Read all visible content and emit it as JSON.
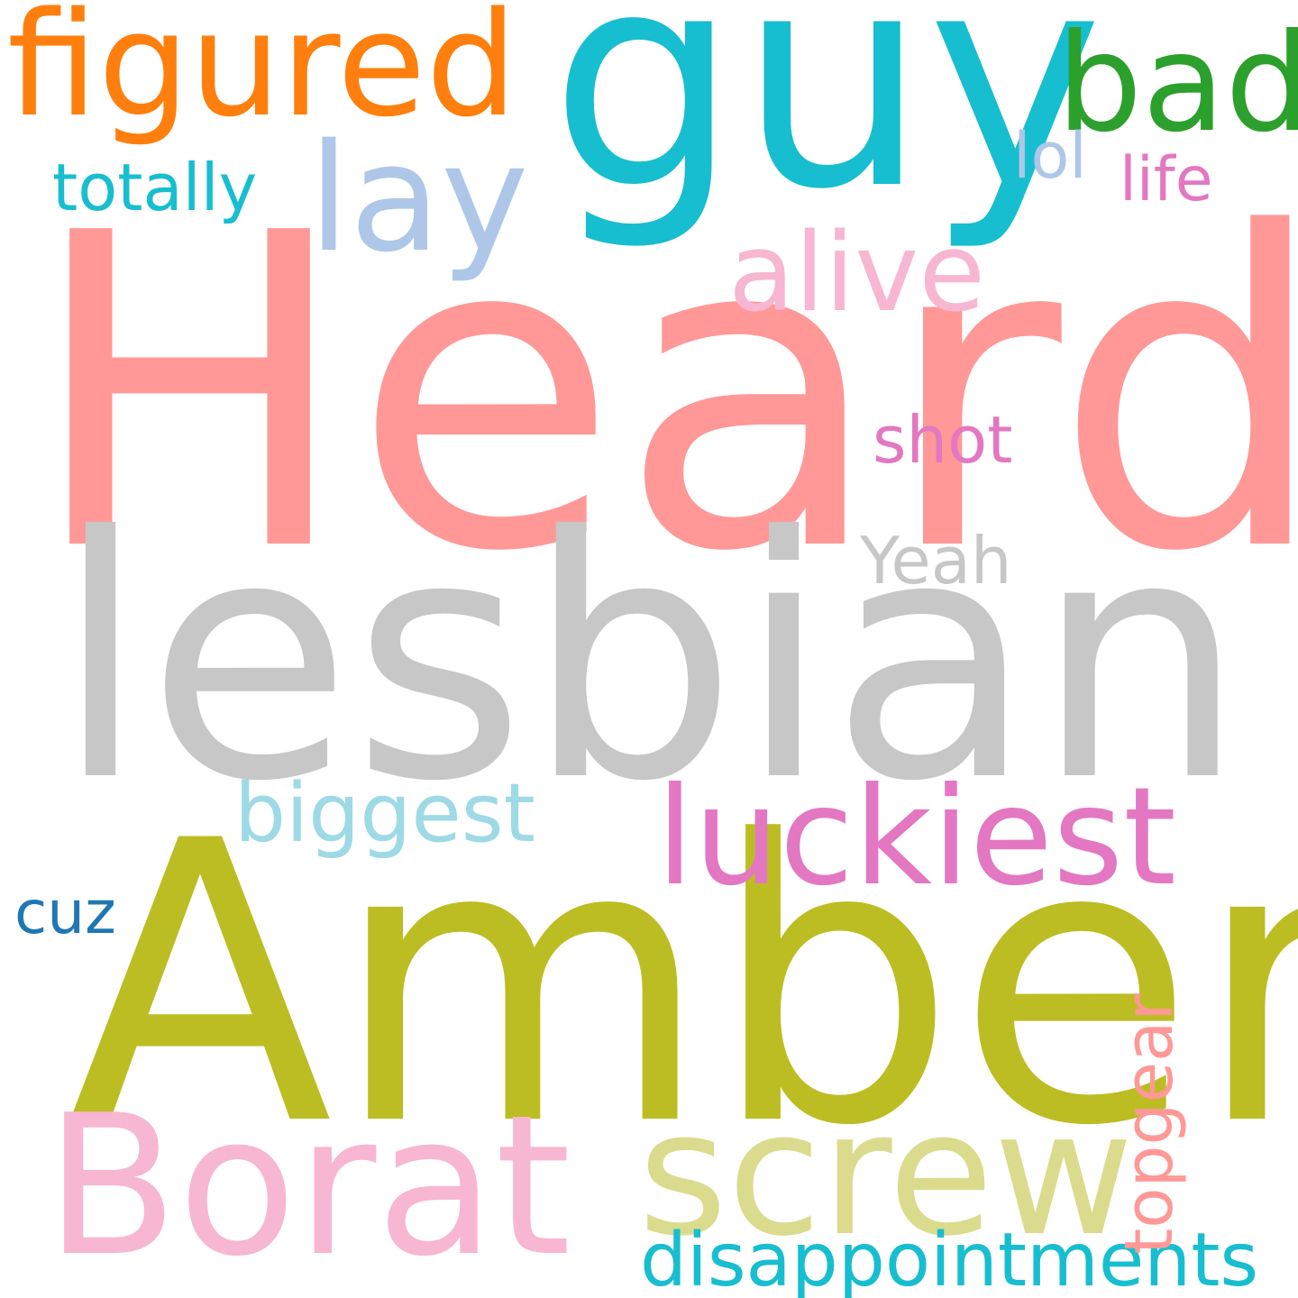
{
  "cloud": {
    "background": "#ffffff",
    "words": {
      "heard": {
        "text": "Heard",
        "color": "#ff9896"
      },
      "lesbian": {
        "text": "lesbian",
        "color": "#c7c7c7"
      },
      "amber": {
        "text": "Amber",
        "color": "#bcbd22"
      },
      "guy": {
        "text": "guy",
        "color": "#17becf"
      },
      "figured": {
        "text": "figured",
        "color": "#ff7f0e"
      },
      "bad": {
        "text": "bad",
        "color": "#2ca02c"
      },
      "lay": {
        "text": "lay",
        "color": "#aec7e8"
      },
      "alive": {
        "text": "alive",
        "color": "#f7b6d2"
      },
      "luckiest": {
        "text": "luckiest",
        "color": "#e377c2"
      },
      "borat": {
        "text": "Borat",
        "color": "#f7b6d2"
      },
      "screw": {
        "text": "screw",
        "color": "#dbdb8d"
      },
      "biggest": {
        "text": "biggest",
        "color": "#9edae5"
      },
      "disappointments": {
        "text": "disappointments",
        "color": "#17becf"
      },
      "totally": {
        "text": "totally",
        "color": "#17becf"
      },
      "lol": {
        "text": "lol",
        "color": "#aec7e8"
      },
      "life": {
        "text": "life",
        "color": "#e377c2"
      },
      "shot": {
        "text": "shot",
        "color": "#e377c2"
      },
      "yeah": {
        "text": "Yeah",
        "color": "#c7c7c7"
      },
      "cuz": {
        "text": "cuz",
        "color": "#1f77b4"
      },
      "topgear": {
        "text": "topgear",
        "color": "#ff9896"
      }
    }
  }
}
